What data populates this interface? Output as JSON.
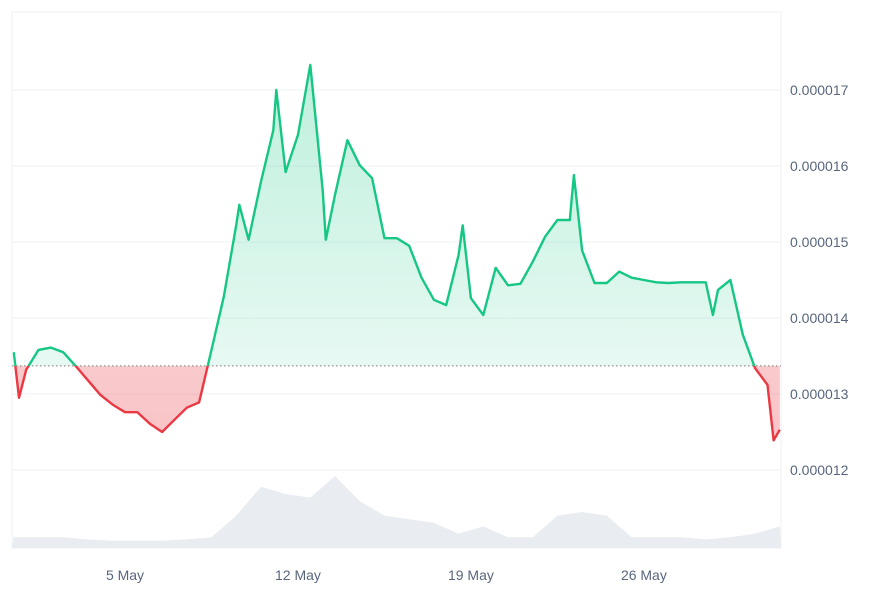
{
  "chart_data": {
    "type": "line",
    "baseline": 1.337e-05,
    "ylim": [
      1.18e-05,
      1.79e-05
    ],
    "yticks": [
      "0.000012",
      "0.000013",
      "0.000014",
      "0.000015",
      "0.000016",
      "0.000017"
    ],
    "ytick_values": [
      1.2e-05,
      1.3e-05,
      1.4e-05,
      1.5e-05,
      1.6e-05,
      1.7e-05
    ],
    "xticks": [
      "5 May",
      "12 May",
      "19 May",
      "26 May"
    ],
    "xtick_dates": [
      "05 May 00:00",
      "12 May 00:00",
      "19 May 00:00",
      "26 May 00:00"
    ],
    "grid": true,
    "colors": {
      "up": "#16c784",
      "down": "#ea3943",
      "volume": "#e9ecf1",
      "grid": "#eff2f5"
    },
    "series": [
      {
        "x": [
          "30 Apr 12:00",
          "30 Apr 17:00",
          "01 May 00:00",
          "01 May 12:00",
          "02 May 00:00",
          "02 May 12:00",
          "03 May 00:00",
          "03 May 12:00",
          "04 May 00:00",
          "04 May 12:00",
          "05 May 00:00",
          "05 May 12:00",
          "06 May 00:00",
          "06 May 12:00",
          "07 May 00:00",
          "07 May 12:00",
          "08 May 00:00",
          "08 May 12:00",
          "09 May 00:00",
          "09 May 12:00",
          "09 May 15:00",
          "10 May 00:00",
          "10 May 12:00",
          "11 May 00:00",
          "11 May 03:00",
          "11 May 12:00",
          "12 May 00:00",
          "12 May 12:00",
          "13 May 00:00",
          "13 May 03:00",
          "13 May 12:00",
          "14 May 00:00",
          "14 May 12:00",
          "15 May 00:00",
          "15 May 12:00",
          "16 May 00:00",
          "16 May 12:00",
          "17 May 00:00",
          "17 May 12:00",
          "18 May 00:00",
          "18 May 12:00",
          "18 May 16:00",
          "19 May 00:00",
          "19 May 12:00",
          "20 May 00:00",
          "20 May 12:00",
          "21 May 00:00",
          "21 May 12:00",
          "22 May 00:00",
          "22 May 12:00",
          "23 May 00:00",
          "23 May 04:00",
          "23 May 12:00",
          "24 May 00:00",
          "24 May 12:00",
          "25 May 00:00",
          "25 May 12:00",
          "26 May 00:00",
          "26 May 12:00",
          "27 May 00:00",
          "27 May 12:00",
          "28 May 00:00",
          "28 May 12:00",
          "28 May 19:00",
          "29 May 00:00",
          "29 May 12:00",
          "30 May 00:00",
          "30 May 12:00",
          "31 May 00:00",
          "31 May 06:00",
          "31 May 12:00"
        ],
        "y": [
          1.355e-05,
          1.295e-05,
          1.332e-05,
          1.358e-05,
          1.361e-05,
          1.355e-05,
          1.337e-05,
          1.318e-05,
          1.299e-05,
          1.286e-05,
          1.276e-05,
          1.276e-05,
          1.261e-05,
          1.25e-05,
          1.266e-05,
          1.282e-05,
          1.289e-05,
          1.358e-05,
          1.428e-05,
          1.522e-05,
          1.549e-05,
          1.503e-05,
          1.579e-05,
          1.647e-05,
          1.7e-05,
          1.592e-05,
          1.641e-05,
          1.733e-05,
          1.568e-05,
          1.503e-05,
          1.562e-05,
          1.634e-05,
          1.601e-05,
          1.584e-05,
          1.505e-05,
          1.505e-05,
          1.495e-05,
          1.453e-05,
          1.424e-05,
          1.417e-05,
          1.483e-05,
          1.522e-05,
          1.426e-05,
          1.404e-05,
          1.466e-05,
          1.443e-05,
          1.445e-05,
          1.474e-05,
          1.507e-05,
          1.529e-05,
          1.529e-05,
          1.588e-05,
          1.489e-05,
          1.446e-05,
          1.446e-05,
          1.461e-05,
          1.453e-05,
          1.45e-05,
          1.447e-05,
          1.446e-05,
          1.447e-05,
          1.447e-05,
          1.447e-05,
          1.404e-05,
          1.437e-05,
          1.45e-05,
          1.378e-05,
          1.334e-05,
          1.312e-05,
          1.239e-05,
          1.253e-05
        ]
      }
    ],
    "volume_relative": {
      "x": [
        "30 Apr 12:00",
        "01 May 12:00",
        "02 May 12:00",
        "03 May 12:00",
        "04 May 12:00",
        "05 May 12:00",
        "06 May 12:00",
        "07 May 12:00",
        "08 May 12:00",
        "09 May 12:00",
        "10 May 12:00",
        "11 May 12:00",
        "12 May 12:00",
        "13 May 12:00",
        "14 May 12:00",
        "15 May 12:00",
        "16 May 12:00",
        "17 May 12:00",
        "18 May 12:00",
        "19 May 12:00",
        "20 May 12:00",
        "21 May 12:00",
        "22 May 12:00",
        "23 May 12:00",
        "24 May 12:00",
        "25 May 12:00",
        "26 May 12:00",
        "27 May 12:00",
        "28 May 12:00",
        "29 May 12:00",
        "30 May 12:00",
        "31 May 12:00"
      ],
      "values": [
        0.15,
        0.15,
        0.15,
        0.12,
        0.1,
        0.1,
        0.1,
        0.12,
        0.15,
        0.45,
        0.85,
        0.75,
        0.7,
        1.0,
        0.65,
        0.45,
        0.4,
        0.35,
        0.2,
        0.3,
        0.15,
        0.15,
        0.45,
        0.5,
        0.45,
        0.15,
        0.15,
        0.15,
        0.12,
        0.15,
        0.2,
        0.3
      ]
    }
  }
}
